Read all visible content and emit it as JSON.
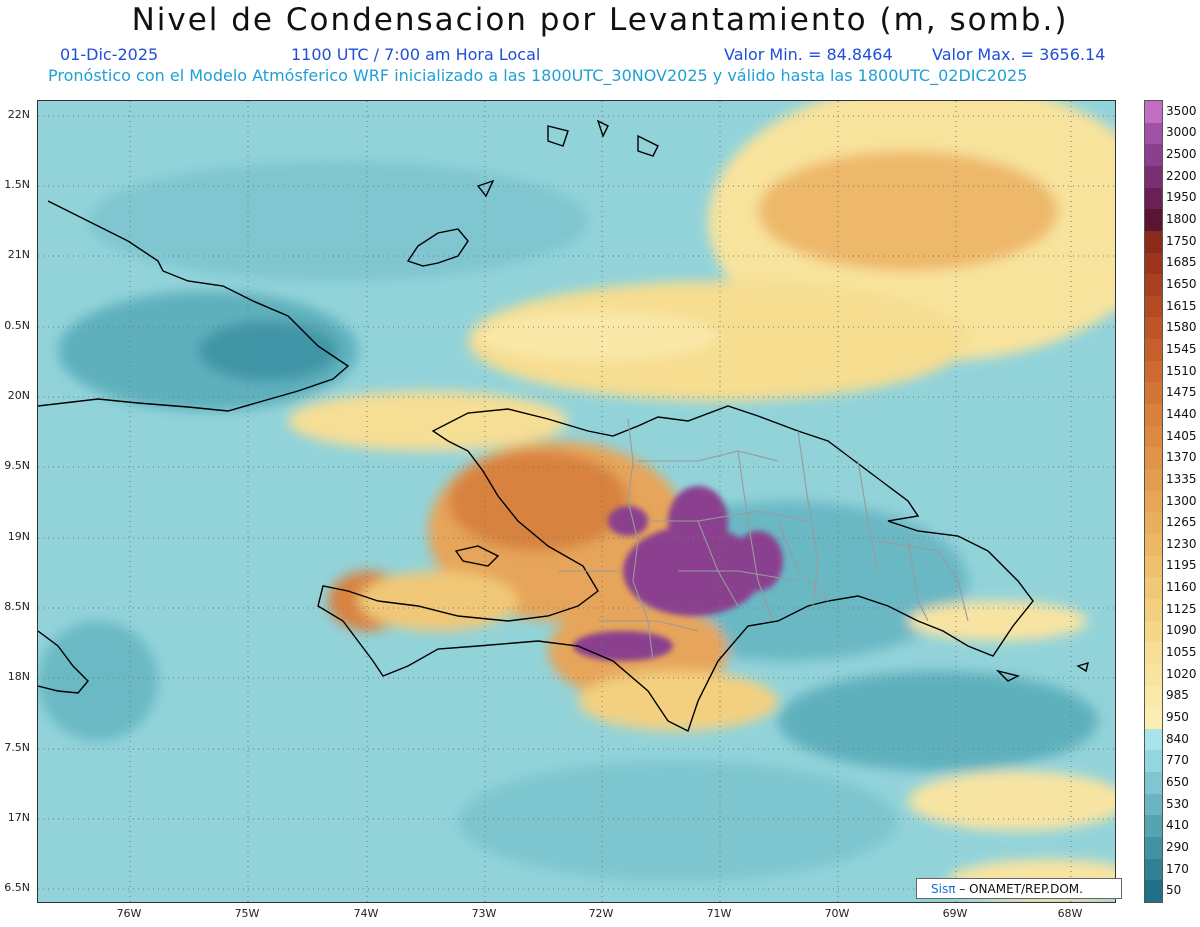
{
  "header": {
    "title": "Nivel de Condensacion por Levantamiento (m, somb.)",
    "date": "01-Dic-2025",
    "time": "1100 UTC / 7:00 am Hora Local",
    "min_value": "Valor Min. = 84.8464",
    "max_value": "Valor Max. = 3656.14",
    "forecast_info": "Pronóstico con el Modelo Atmósferico WRF inicializado a las 1800UTC_30NOV2025 y válido hasta las  1800UTC_02DIC2025"
  },
  "axes": {
    "lat_labels": [
      "22N",
      "1.5N",
      "21N",
      "0.5N",
      "20N",
      "9.5N",
      "19N",
      "8.5N",
      "18N",
      "7.5N",
      "17N",
      "6.5N"
    ],
    "lon_labels": [
      "76W",
      "75W",
      "74W",
      "73W",
      "72W",
      "71W",
      "70W",
      "69W",
      "68W"
    ]
  },
  "legend": {
    "levels": [
      "3500",
      "3000",
      "2500",
      "2200",
      "1950",
      "1800",
      "1750",
      "1685",
      "1650",
      "1615",
      "1580",
      "1545",
      "1510",
      "1475",
      "1440",
      "1405",
      "1370",
      "1335",
      "1300",
      "1265",
      "1230",
      "1195",
      "1160",
      "1125",
      "1090",
      "1055",
      "1020",
      "985",
      "950",
      "840",
      "770",
      "650",
      "530",
      "410",
      "290",
      "170",
      "50"
    ],
    "colors": [
      "#c26ec0",
      "#a052a6",
      "#8a3f8f",
      "#7a2f73",
      "#6a1f55",
      "#5a1530",
      "#8b2a1a",
      "#9c351b",
      "#a8411f",
      "#b34a22",
      "#bd5526",
      "#c65f2b",
      "#cd6a30",
      "#d37536",
      "#d8803c",
      "#dc8a42",
      "#e09448",
      "#e39d4f",
      "#e6a656",
      "#e9af5e",
      "#ecb866",
      "#efc06e",
      "#f1c877",
      "#f3d080",
      "#f5d78a",
      "#f7de94",
      "#f9e49f",
      "#fae9a9",
      "#fbeeb3",
      "#a8e4ea",
      "#93d6df",
      "#7fc6d0",
      "#6ab5c1",
      "#55a4b2",
      "#4193a3",
      "#2f8294",
      "#1f7186"
    ]
  },
  "credit": {
    "brand": "Sisπ",
    "text": "– ONAMET/REP.DOM."
  }
}
